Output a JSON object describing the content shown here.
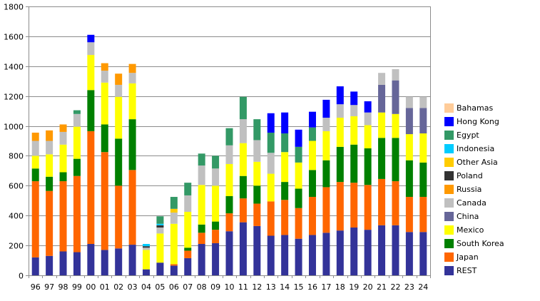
{
  "chart_data": {
    "type": "bar",
    "stacked": true,
    "title": "",
    "xlabel": "",
    "ylabel": "",
    "ylim": [
      0,
      1800
    ],
    "yticks": [
      0,
      200,
      400,
      600,
      800,
      1000,
      1200,
      1400,
      1600,
      1800
    ],
    "grid": true,
    "legend_position": "right",
    "categories": [
      "96",
      "97",
      "98",
      "99",
      "00",
      "01",
      "02",
      "03",
      "04",
      "05",
      "06",
      "07",
      "08",
      "09",
      "10",
      "11",
      "12",
      "13",
      "14",
      "15",
      "16",
      "17",
      "18",
      "19",
      "20",
      "21",
      "22",
      "23",
      "24"
    ],
    "series": [
      {
        "name": "REST",
        "color": "#333399",
        "values": [
          120,
          130,
          160,
          155,
          210,
          170,
          180,
          205,
          40,
          85,
          65,
          115,
          210,
          215,
          295,
          355,
          330,
          265,
          270,
          245,
          270,
          285,
          300,
          320,
          305,
          335,
          335,
          290,
          290
        ]
      },
      {
        "name": "Japan",
        "color": "#FF6600",
        "values": [
          510,
          435,
          470,
          510,
          755,
          655,
          420,
          500,
          0,
          0,
          10,
          50,
          75,
          90,
          120,
          160,
          150,
          230,
          235,
          205,
          255,
          305,
          325,
          300,
          300,
          310,
          295,
          235,
          235
        ]
      },
      {
        "name": "South Korea",
        "color": "#008000",
        "values": [
          85,
          95,
          60,
          115,
          275,
          185,
          315,
          340,
          0,
          0,
          0,
          20,
          55,
          55,
          115,
          150,
          120,
          0,
          120,
          130,
          180,
          180,
          235,
          255,
          245,
          275,
          290,
          245,
          230
        ]
      },
      {
        "name": "Mexico",
        "color": "#FFFF00",
        "values": [
          85,
          150,
          185,
          215,
          235,
          280,
          280,
          240,
          130,
          195,
          270,
          240,
          265,
          240,
          215,
          220,
          160,
          185,
          200,
          175,
          195,
          195,
          195,
          190,
          155,
          170,
          160,
          175,
          195
        ]
      },
      {
        "name": "China",
        "color": "#666699",
        "values": [
          0,
          0,
          0,
          0,
          0,
          0,
          0,
          0,
          0,
          0,
          0,
          0,
          0,
          0,
          0,
          0,
          0,
          0,
          0,
          0,
          0,
          0,
          0,
          0,
          0,
          185,
          225,
          175,
          170
        ]
      },
      {
        "name": "Canada",
        "color": "#C0C0C0",
        "values": [
          100,
          90,
          85,
          85,
          85,
          80,
          80,
          70,
          15,
          40,
          75,
          110,
          130,
          115,
          125,
          160,
          145,
          140,
          0,
          0,
          0,
          90,
          90,
          75,
          85,
          80,
          75,
          75,
          75
        ]
      },
      {
        "name": "Russia",
        "color": "#FF9900",
        "values": [
          55,
          70,
          50,
          0,
          0,
          50,
          75,
          60,
          0,
          0,
          0,
          0,
          0,
          0,
          0,
          0,
          0,
          0,
          0,
          0,
          0,
          0,
          0,
          0,
          0,
          0,
          0,
          0,
          0
        ]
      },
      {
        "name": "Poland",
        "color": "#333333",
        "values": [
          0,
          0,
          0,
          0,
          0,
          0,
          0,
          0,
          10,
          15,
          0,
          0,
          0,
          0,
          0,
          0,
          0,
          0,
          0,
          0,
          0,
          0,
          0,
          0,
          0,
          0,
          0,
          0,
          0
        ]
      },
      {
        "name": "Other Asia",
        "color": "#FFCC00",
        "values": [
          0,
          0,
          0,
          0,
          0,
          0,
          0,
          0,
          0,
          0,
          25,
          0,
          0,
          0,
          0,
          0,
          0,
          0,
          0,
          0,
          0,
          0,
          0,
          0,
          0,
          0,
          0,
          0,
          0
        ]
      },
      {
        "name": "Indonesia",
        "color": "#00CCFF",
        "values": [
          0,
          0,
          0,
          0,
          0,
          0,
          0,
          0,
          15,
          10,
          0,
          0,
          0,
          0,
          0,
          0,
          0,
          0,
          0,
          0,
          0,
          0,
          0,
          0,
          0,
          0,
          0,
          0,
          0
        ]
      },
      {
        "name": "Egypt",
        "color": "#339966",
        "values": [
          0,
          0,
          0,
          25,
          0,
          0,
          0,
          0,
          0,
          50,
          80,
          85,
          80,
          85,
          115,
          150,
          140,
          135,
          125,
          105,
          90,
          0,
          0,
          0,
          0,
          0,
          0,
          0,
          0
        ]
      },
      {
        "name": "Hong Kong",
        "color": "#0000FF",
        "values": [
          0,
          0,
          0,
          0,
          50,
          0,
          0,
          0,
          0,
          0,
          0,
          0,
          0,
          0,
          0,
          0,
          0,
          130,
          140,
          115,
          105,
          120,
          120,
          90,
          75,
          0,
          0,
          0,
          0
        ]
      },
      {
        "name": "Bahamas",
        "color": "#FFCC99",
        "values": [
          0,
          0,
          0,
          0,
          0,
          0,
          0,
          0,
          0,
          0,
          0,
          0,
          0,
          0,
          0,
          0,
          0,
          0,
          0,
          0,
          0,
          0,
          0,
          0,
          0,
          0,
          0,
          0,
          0
        ]
      }
    ]
  },
  "legend": {
    "items": [
      {
        "label": "Bahamas",
        "color": "#FFCC99"
      },
      {
        "label": "Hong Kong",
        "color": "#0000FF"
      },
      {
        "label": "Egypt",
        "color": "#339966"
      },
      {
        "label": "Indonesia",
        "color": "#00CCFF"
      },
      {
        "label": "Other Asia",
        "color": "#FFCC00"
      },
      {
        "label": "Poland",
        "color": "#333333"
      },
      {
        "label": "Russia",
        "color": "#FF9900"
      },
      {
        "label": "Canada",
        "color": "#C0C0C0"
      },
      {
        "label": "China",
        "color": "#666699"
      },
      {
        "label": "Mexico",
        "color": "#FFFF00"
      },
      {
        "label": "South Korea",
        "color": "#008000"
      },
      {
        "label": "Japan",
        "color": "#FF6600"
      },
      {
        "label": "REST",
        "color": "#333399"
      }
    ]
  }
}
